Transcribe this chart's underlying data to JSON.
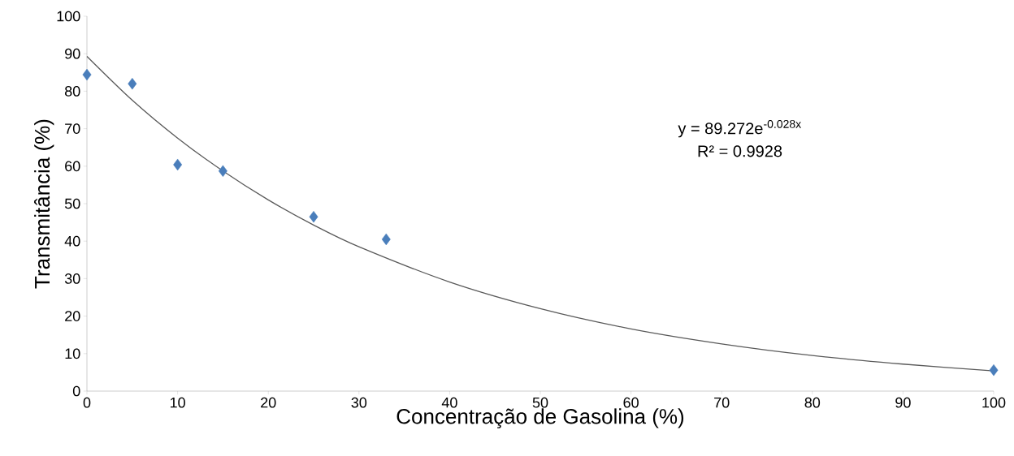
{
  "chart_data": {
    "type": "scatter",
    "xlabel": "Concentração de Gasolina (%)",
    "ylabel": "Transmitância (%)",
    "xlim": [
      0,
      100
    ],
    "ylim": [
      0,
      100
    ],
    "xticks": [
      0,
      10,
      20,
      30,
      40,
      50,
      60,
      70,
      80,
      90,
      100
    ],
    "yticks": [
      0,
      10,
      20,
      30,
      40,
      50,
      60,
      70,
      80,
      90,
      100
    ],
    "grid": false,
    "marker": "diamond",
    "series": [
      {
        "color": "#4a7ebb",
        "x": [
          0,
          5,
          10,
          15,
          25,
          33,
          100
        ],
        "values": [
          84.4,
          82.0,
          60.4,
          58.7,
          46.5,
          40.5,
          5.6
        ]
      },
      {
        "type": "line",
        "color": "#595959",
        "marker": "none",
        "x": [
          0,
          5,
          10,
          15,
          20,
          25,
          30,
          40,
          50,
          60,
          70,
          80,
          90,
          100
        ],
        "values": [
          89.3,
          77.6,
          67.5,
          58.7,
          51.0,
          44.3,
          38.5,
          29.1,
          22.0,
          16.6,
          12.6,
          9.5,
          7.2,
          5.4
        ]
      }
    ],
    "annotations": [
      "y = 89.272e$^{-0.028x}$",
      "R² = 0.9928"
    ]
  }
}
